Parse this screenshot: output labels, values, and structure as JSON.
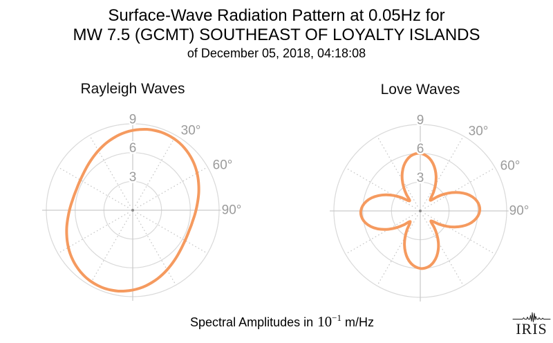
{
  "header": {
    "title_line1": "Surface-Wave Radiation Pattern at 0.05Hz for",
    "title_line2": "MW 7.5 (GCMT) SOUTHEAST OF LOYALTY ISLANDS",
    "subtitle": "of December 05, 2018, 04:18:08"
  },
  "footer": {
    "text_prefix": "Spectral Amplitudes in",
    "power_base": "10",
    "power_exponent": "−1",
    "text_suffix": "m/Hz",
    "logo_text": "IRIS"
  },
  "colors": {
    "curve": "#f59a5f",
    "grid_circle": "#d9d9d9",
    "axis_line": "#c9c9c9",
    "spoke_dotted": "#c6c6c6",
    "tick_label": "#9b9b9b",
    "center_dot": "#8a8a8a",
    "title_text": "#000000"
  },
  "chart_data": [
    {
      "type": "polar_line",
      "title": "Rayleigh Waves",
      "series_name": "Rayleigh-wave spectral amplitude",
      "units": "10^-1 m/Hz",
      "r_axis": {
        "ticks": [
          3,
          6,
          9
        ],
        "tick_labels": [
          "3",
          "6",
          "9"
        ],
        "max": 9
      },
      "theta_axis": {
        "zero_direction": "up",
        "rotation": "clockwise",
        "labeled_degrees": [
          30,
          60,
          90
        ],
        "labels": [
          "30°",
          "60°",
          "90°"
        ],
        "solid_spokes_deg": [
          0,
          90,
          180,
          270
        ],
        "dotted_spokes_deg": [
          30,
          60,
          120,
          150,
          210,
          240,
          300,
          330
        ]
      },
      "pattern_model": "r(θ) ≈ 7.45 + 1.20·cos(2(θ − 22°)), θ clockwise from north",
      "angle_step_deg": 5,
      "radii_by_angle": [
        8.31,
        8.44,
        8.55,
        8.61,
        8.65,
        8.64,
        8.6,
        8.53,
        8.42,
        8.28,
        8.12,
        7.94,
        7.74,
        7.53,
        7.32,
        7.12,
        6.92,
        6.74,
        6.59,
        6.46,
        6.35,
        6.29,
        6.25,
        6.26,
        6.3,
        6.37,
        6.48,
        6.62,
        6.78,
        6.96,
        7.16,
        7.37,
        7.58,
        7.78,
        7.98,
        8.16,
        8.31,
        8.44,
        8.55,
        8.61,
        8.65,
        8.64,
        8.6,
        8.53,
        8.42,
        8.28,
        8.12,
        7.94,
        7.74,
        7.53,
        7.32,
        7.12,
        6.92,
        6.74,
        6.59,
        6.46,
        6.35,
        6.29,
        6.25,
        6.26,
        6.3,
        6.37,
        6.48,
        6.62,
        6.78,
        6.96,
        7.16,
        7.37,
        7.58,
        7.78,
        7.98,
        8.16
      ]
    },
    {
      "type": "polar_line",
      "title": "Love Waves",
      "series_name": "Love-wave spectral amplitude",
      "units": "10^-1 m/Hz",
      "r_axis": {
        "ticks": [
          3,
          6,
          9
        ],
        "tick_labels": [
          "3",
          "6",
          "9"
        ],
        "max": 9
      },
      "theta_axis": {
        "zero_direction": "up",
        "rotation": "clockwise",
        "labeled_degrees": [
          30,
          60,
          90
        ],
        "labels": [
          "30°",
          "60°",
          "90°"
        ],
        "solid_spokes_deg": [
          0,
          90,
          180,
          270
        ],
        "dotted_spokes_deg": [
          30,
          60,
          120,
          150,
          210,
          240,
          300,
          330
        ]
      },
      "pattern_model": "four-lobed clover: r(θ) ≈ 1.35 + (a(θ)−1.35)·|cos(2(θ+2°))|^1.15, a(θ)=6.0+0.2·sin²(θ+2°)",
      "angle_step_deg": 5,
      "radii_by_angle": [
        5.99,
        5.84,
        5.55,
        5.11,
        4.55,
        3.9,
        3.17,
        2.42,
        1.7,
        1.57,
        2.28,
        3.05,
        3.81,
        4.52,
        5.14,
        5.63,
        5.98,
        6.17,
        6.19,
        6.03,
        5.71,
        5.25,
        4.65,
        3.96,
        3.21,
        2.44,
        1.7,
        1.57,
        2.27,
        3.02,
        3.76,
        4.43,
        5.01,
        5.47,
        5.8,
        5.97,
        5.99,
        5.84,
        5.55,
        5.11,
        4.55,
        3.9,
        3.17,
        2.42,
        1.7,
        1.57,
        2.28,
        3.05,
        3.81,
        4.52,
        5.14,
        5.63,
        5.98,
        6.17,
        6.19,
        6.03,
        5.71,
        5.25,
        4.65,
        3.96,
        3.21,
        2.44,
        1.7,
        1.57,
        2.27,
        3.02,
        3.76,
        4.43,
        5.01,
        5.47,
        5.8,
        5.97
      ]
    }
  ]
}
